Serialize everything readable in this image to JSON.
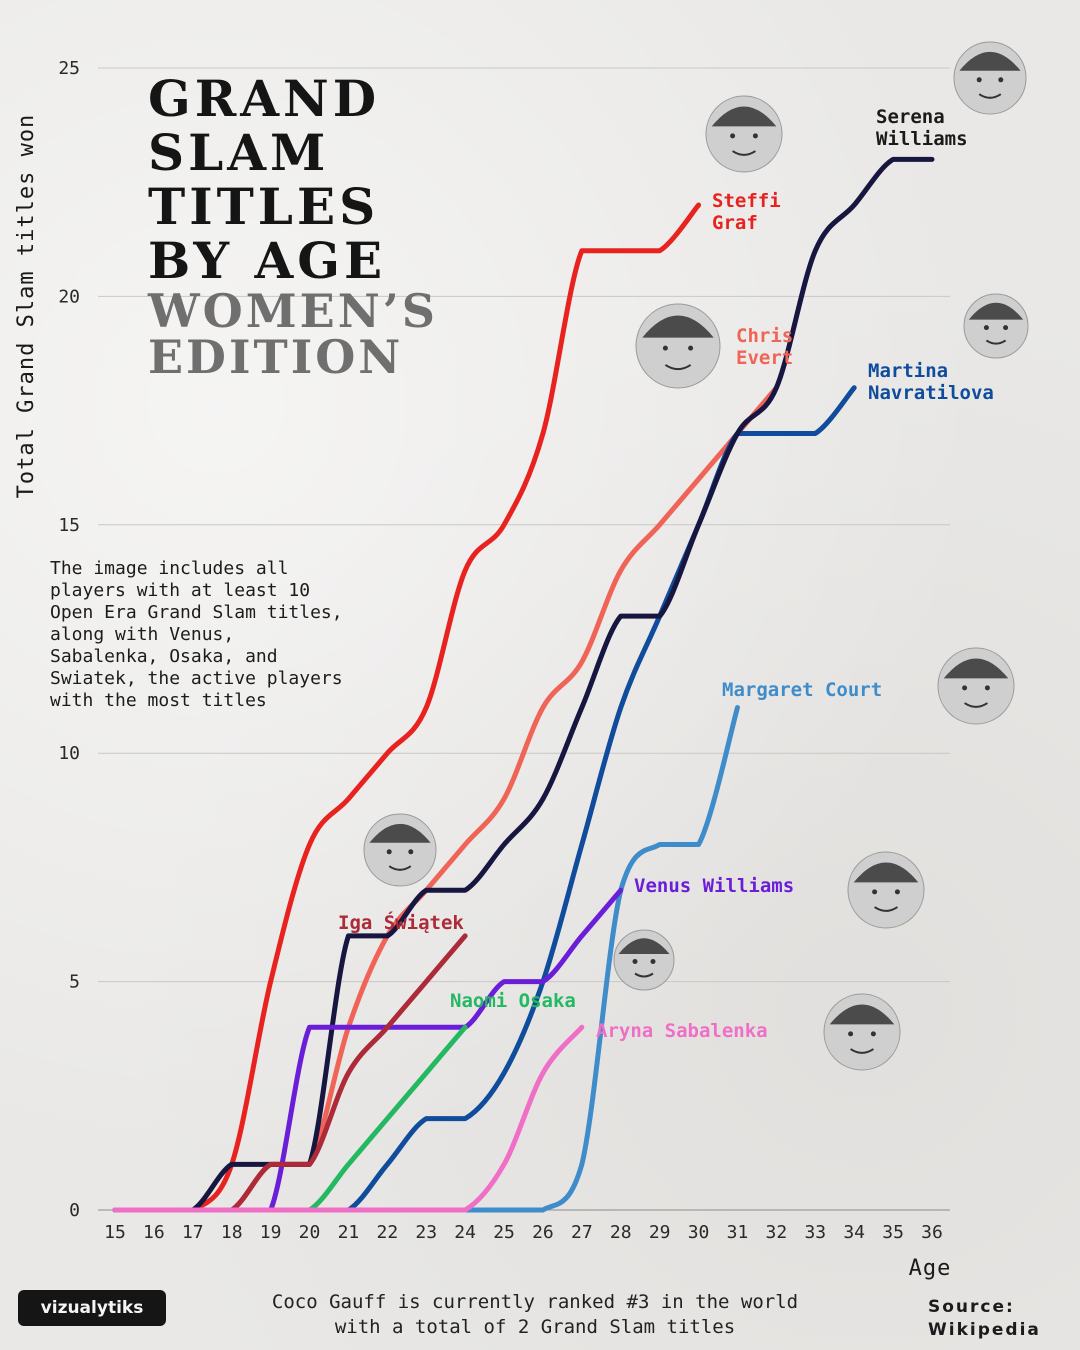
{
  "title": {
    "line1": "GRAND",
    "line2": "SLAM",
    "line3": "TITLES",
    "line4": "BY AGE",
    "line5": "WOMEN’S",
    "line6": "EDITION"
  },
  "note": "The image includes all\nplayers with at least 10\nOpen Era Grand Slam titles,\nalong with Venus,\nSabalenka, Osaka, and\nSwiatek, the active players\nwith the most titles",
  "footer": "Coco Gauff is currently ranked #3 in the world\nwith a total of 2 Grand Slam titles",
  "source": "Source:\nWikipedia",
  "logo": "vizualytiks",
  "chart_data": {
    "type": "line",
    "xlabel": "Age",
    "ylabel": "Total Grand Slam titles won",
    "xlim": [
      15,
      36
    ],
    "ylim": [
      0,
      25
    ],
    "xticks": [
      15,
      16,
      17,
      18,
      19,
      20,
      21,
      22,
      23,
      24,
      25,
      26,
      27,
      28,
      29,
      30,
      31,
      32,
      33,
      34,
      35,
      36
    ],
    "yticks": [
      0,
      5,
      10,
      15,
      20,
      25
    ],
    "grid": "horizontal",
    "series": [
      {
        "name": "Steffi Graf",
        "color": "#e8231f",
        "label_lines": [
          "Steffi",
          "Graf"
        ],
        "x": [
          15,
          16,
          17,
          18,
          19,
          20,
          21,
          22,
          23,
          24,
          25,
          26,
          27,
          28,
          29,
          30
        ],
        "y": [
          0,
          0,
          0,
          1,
          5,
          8,
          9,
          10,
          11,
          14,
          15,
          17,
          21,
          21,
          21,
          22
        ]
      },
      {
        "name": "Chris Evert",
        "color": "#f06457",
        "label_lines": [
          "Chris",
          "Evert"
        ],
        "x": [
          15,
          16,
          17,
          18,
          19,
          20,
          21,
          22,
          23,
          24,
          25,
          26,
          27,
          28,
          29,
          30,
          31,
          32
        ],
        "y": [
          0,
          0,
          0,
          0,
          1,
          1,
          4,
          6,
          7,
          8,
          9,
          11,
          12,
          14,
          15,
          16,
          17,
          18
        ]
      },
      {
        "name": "Martina Navratilova",
        "color": "#0f4c9c",
        "label_lines": [
          "Martina",
          "Navratilova"
        ],
        "x": [
          15,
          16,
          17,
          18,
          19,
          20,
          21,
          22,
          23,
          24,
          25,
          26,
          27,
          28,
          29,
          30,
          31,
          32,
          33,
          34
        ],
        "y": [
          0,
          0,
          0,
          0,
          0,
          0,
          0,
          1,
          2,
          2,
          3,
          5,
          8,
          11,
          13,
          15,
          17,
          17,
          17,
          18
        ]
      },
      {
        "name": "Serena Williams",
        "color": "#161640",
        "label_lines": [
          "Serena",
          "Williams"
        ],
        "x": [
          15,
          16,
          17,
          18,
          19,
          20,
          21,
          22,
          23,
          24,
          25,
          26,
          27,
          28,
          29,
          30,
          31,
          32,
          33,
          34,
          35,
          36
        ],
        "y": [
          0,
          0,
          0,
          1,
          1,
          1,
          6,
          6,
          7,
          7,
          8,
          9,
          11,
          13,
          13,
          15,
          17,
          18,
          21,
          22,
          23,
          23
        ]
      },
      {
        "name": "Margaret Court",
        "color": "#3f8ccb",
        "label_lines": [
          "Margaret Court"
        ],
        "x": [
          15,
          16,
          17,
          18,
          19,
          20,
          21,
          22,
          23,
          24,
          25,
          26,
          27,
          28,
          29,
          30,
          31
        ],
        "y": [
          0,
          0,
          0,
          0,
          0,
          0,
          0,
          0,
          0,
          0,
          0,
          0,
          1,
          7,
          8,
          8,
          11
        ]
      },
      {
        "name": "Venus Williams",
        "color": "#6a1ed8",
        "label_lines": [
          "Venus Williams"
        ],
        "x": [
          15,
          16,
          17,
          18,
          19,
          20,
          21,
          22,
          23,
          24,
          25,
          26,
          27,
          28
        ],
        "y": [
          0,
          0,
          0,
          0,
          0,
          4,
          4,
          4,
          4,
          4,
          5,
          5,
          6,
          7
        ]
      },
      {
        "name": "Iga Świątek",
        "color": "#ad2a39",
        "label_lines": [
          "Iga Świątek"
        ],
        "x": [
          15,
          16,
          17,
          18,
          19,
          20,
          21,
          22,
          23,
          24
        ],
        "y": [
          0,
          0,
          0,
          0,
          1,
          1,
          3,
          4,
          5,
          6
        ]
      },
      {
        "name": "Naomi Osaka",
        "color": "#25b862",
        "label_lines": [
          "Naomi Osaka"
        ],
        "x": [
          15,
          16,
          17,
          18,
          19,
          20,
          21,
          22,
          23,
          24
        ],
        "y": [
          0,
          0,
          0,
          0,
          0,
          0,
          1,
          2,
          3,
          4
        ]
      },
      {
        "name": "Aryna Sabalenka",
        "color": "#f06fc6",
        "label_lines": [
          "Aryna Sabalenka"
        ],
        "x": [
          15,
          16,
          17,
          18,
          19,
          20,
          21,
          22,
          23,
          24,
          25,
          26,
          27
        ],
        "y": [
          0,
          0,
          0,
          0,
          0,
          0,
          0,
          0,
          0,
          0,
          1,
          3,
          4
        ]
      }
    ]
  },
  "colors": {
    "background": "#e9e8e6",
    "grid": "#c9c8c6",
    "title_dark": "#151515",
    "title_grey": "#6f6f6f"
  }
}
